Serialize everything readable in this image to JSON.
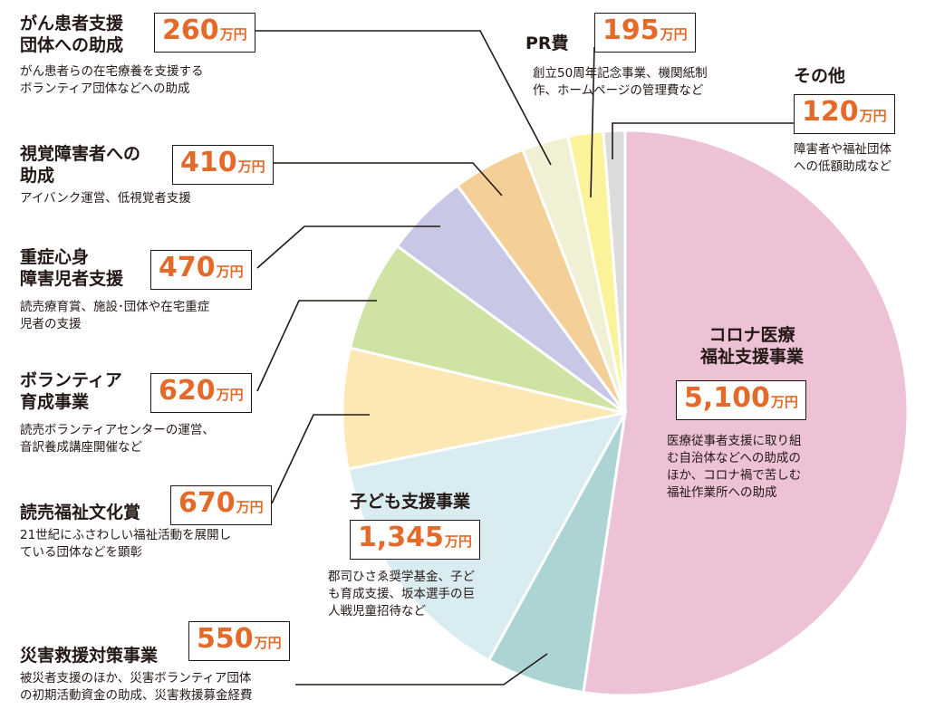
{
  "colors": {
    "corona": "#eec2d6",
    "disaster": "#acd4d4",
    "children": "#d9ecf1",
    "yomiuri": "#fbe8b4",
    "volunteer": "#cee3a4",
    "severe": "#c8c8e6",
    "visual": "#f5cf98",
    "cancer": "#eff0d4",
    "pr": "#fbf39a",
    "other": "#dcdcdc",
    "amount_text": "#e46a2a",
    "line": "#231815"
  },
  "unit": "万円",
  "chart_data": {
    "type": "pie",
    "unit": "万円",
    "slices": [
      {
        "key": "corona",
        "label": "コロナ医療福祉支援事業",
        "value": 5100,
        "value_label": "5,100",
        "desc": [
          "医療従事者支援に取り組",
          "む自治体などへの助成の",
          "ほか、コロナ禍で苦しむ",
          "福祉作業所への助成"
        ]
      },
      {
        "key": "disaster",
        "label": "災害救援対策事業",
        "value": 550,
        "value_label": "550",
        "desc": [
          "被災者支援のほか、災害ボランティア団体",
          "の初期活動資金の助成、災害救援募金経費"
        ]
      },
      {
        "key": "children",
        "label": "子ども支援事業",
        "value": 1345,
        "value_label": "1,345",
        "desc": [
          "郡司ひさゑ奨学基金、子ど",
          "も育成支援、坂本選手の巨",
          "人戦児童招待など"
        ]
      },
      {
        "key": "yomiuri",
        "label": "読売福祉文化賞",
        "value": 670,
        "value_label": "670",
        "desc": [
          "21世紀にふさわしい福祉活動を展開し",
          "ている団体などを顕彰"
        ]
      },
      {
        "key": "volunteer",
        "label": "ボランティア育成事業",
        "value": 620,
        "value_label": "620",
        "desc": [
          "読売ボランティアセンターの運営、",
          "音訳養成講座開催など"
        ]
      },
      {
        "key": "severe",
        "label": "重症心身障害児者支援",
        "value": 470,
        "value_label": "470",
        "desc": [
          "読売療育賞、施設･団体や在宅重症",
          "児者の支援"
        ]
      },
      {
        "key": "visual",
        "label": "視覚障害者への助成",
        "value": 410,
        "value_label": "410",
        "desc": [
          "アイバンク運営、低視覚者支援"
        ]
      },
      {
        "key": "cancer",
        "label": "がん患者支援団体への助成",
        "value": 260,
        "value_label": "260",
        "desc": [
          "がん患者らの在宅療養を支援する",
          "ボランティア団体などへの助成"
        ]
      },
      {
        "key": "pr",
        "label": "PR費",
        "value": 195,
        "value_label": "195",
        "desc": [
          "創立50周年記念事業、機関紙制",
          "作、ホームページの管理費など"
        ]
      },
      {
        "key": "other",
        "label": "その他",
        "value": 120,
        "value_label": "120",
        "desc": [
          "障害者や福祉団体",
          "への低額助成など"
        ]
      }
    ]
  },
  "labels": {
    "corona_name": [
      "コロナ医療",
      "福祉支援事業"
    ],
    "disaster_name": [
      "災害救援対策事業"
    ],
    "children_name": [
      "子ども支援事業"
    ],
    "yomiuri_name": [
      "読売福祉文化賞"
    ],
    "volunteer_name": [
      "ボランティア",
      "育成事業"
    ],
    "severe_name": [
      "重症心身",
      "障害児者支援"
    ],
    "visual_name": [
      "視覚障害者への",
      "助成"
    ],
    "cancer_name": [
      "がん患者支援",
      "団体への助成"
    ],
    "pr_name": [
      "PR費"
    ],
    "other_name": [
      "その他"
    ]
  }
}
